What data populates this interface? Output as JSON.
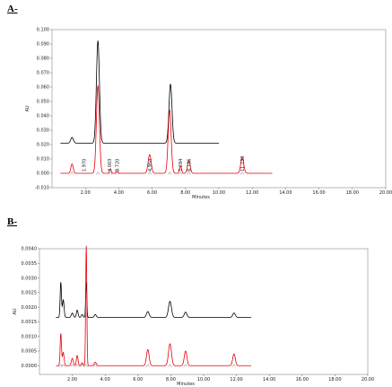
{
  "panels": {
    "a": {
      "label": "A-"
    },
    "b": {
      "label": "B-"
    }
  },
  "chart_data": [
    {
      "type": "line",
      "panel": "A-",
      "xlabel": "Minutes",
      "ylabel": "AU",
      "xlim": [
        0,
        20
      ],
      "ylim": [
        -0.01,
        0.1
      ],
      "x_ticks": [
        "2.00",
        "4.00",
        "6.00",
        "8.00",
        "10.00",
        "12.00",
        "14.00",
        "16.00",
        "18.00",
        "20.00"
      ],
      "y_ticks": [
        "-0.010",
        "0.000",
        "0.010",
        "0.020",
        "0.030",
        "0.040",
        "0.050",
        "0.060",
        "0.070",
        "0.080",
        "0.090",
        "0.100"
      ],
      "grid": false,
      "series": [
        {
          "color": "#000000",
          "baseline": 0.021,
          "x_range": [
            0.5,
            10.0
          ],
          "peaks": [
            {
              "x": 1.2,
              "height": 0.004,
              "width": 0.08
            },
            {
              "x": 2.75,
              "height": 0.071,
              "width": 0.09
            },
            {
              "x": 7.1,
              "height": 0.041,
              "width": 0.09
            }
          ]
        },
        {
          "color": "#e8000b",
          "baseline": 0.0,
          "x_range": [
            0.5,
            13.2
          ],
          "peaks": [
            {
              "x": 1.2,
              "height": 0.0065,
              "width": 0.07
            },
            {
              "x": 2.75,
              "height": 0.061,
              "width": 0.09
            },
            {
              "x": 3.5,
              "height": 0.003,
              "width": 0.05
            },
            {
              "x": 3.9,
              "height": 0.002,
              "width": 0.05
            },
            {
              "x": 5.85,
              "height": 0.013,
              "width": 0.09
            },
            {
              "x": 7.05,
              "height": 0.044,
              "width": 0.09
            },
            {
              "x": 7.7,
              "height": 0.005,
              "width": 0.06
            },
            {
              "x": 8.2,
              "height": 0.009,
              "width": 0.08
            },
            {
              "x": 11.4,
              "height": 0.011,
              "width": 0.09
            }
          ]
        }
      ],
      "peak_labels": [
        {
          "x": 1.9,
          "text": "1.970"
        },
        {
          "x": 3.45,
          "text": "3.003"
        },
        {
          "x": 3.9,
          "text": "3.720"
        },
        {
          "x": 5.85,
          "text": "4.954"
        },
        {
          "x": 7.7,
          "text": "7.284"
        },
        {
          "x": 8.2,
          "text": "8.136"
        },
        {
          "x": 11.4,
          "text": "11.130"
        }
      ]
    },
    {
      "type": "line",
      "panel": "B-",
      "xlabel": "Minutes",
      "ylabel": "AU",
      "xlim": [
        0,
        20
      ],
      "ylim": [
        -0.0003,
        0.004
      ],
      "x_ticks": [
        "2.00",
        "4.00",
        "6.00",
        "8.00",
        "10.00",
        "12.00",
        "14.00",
        "16.00",
        "18.00",
        "20.00"
      ],
      "y_ticks": [
        "0.0000",
        "0.0005",
        "0.0010",
        "0.0015",
        "0.0020",
        "0.0025",
        "0.0030",
        "0.0035",
        "0.0040"
      ],
      "grid": false,
      "series": [
        {
          "color": "#000000",
          "baseline": 0.00165,
          "x_range": [
            1.0,
            12.9
          ],
          "peaks": [
            {
              "x": 1.3,
              "height": 0.0012,
              "width": 0.04
            },
            {
              "x": 1.45,
              "height": 0.0006,
              "width": 0.05
            },
            {
              "x": 2.0,
              "height": 0.00015,
              "width": 0.06
            },
            {
              "x": 2.3,
              "height": 0.00025,
              "width": 0.05
            },
            {
              "x": 2.6,
              "height": 0.0001,
              "width": 0.05
            },
            {
              "x": 2.85,
              "height": 0.0012,
              "width": 0.035
            },
            {
              "x": 3.4,
              "height": 0.0001,
              "width": 0.06
            },
            {
              "x": 6.6,
              "height": 0.0002,
              "width": 0.08
            },
            {
              "x": 7.95,
              "height": 0.00055,
              "width": 0.09
            },
            {
              "x": 8.9,
              "height": 0.00018,
              "width": 0.08
            },
            {
              "x": 11.85,
              "height": 0.00015,
              "width": 0.08
            }
          ]
        },
        {
          "color": "#e8000b",
          "baseline": 0.0,
          "x_range": [
            1.0,
            12.9
          ],
          "peaks": [
            {
              "x": 1.3,
              "height": 0.0011,
              "width": 0.04
            },
            {
              "x": 1.45,
              "height": 0.00045,
              "width": 0.05
            },
            {
              "x": 2.0,
              "height": 0.00025,
              "width": 0.06
            },
            {
              "x": 2.3,
              "height": 0.00035,
              "width": 0.05
            },
            {
              "x": 2.6,
              "height": 0.0001,
              "width": 0.05
            },
            {
              "x": 2.85,
              "height": 0.0041,
              "width": 0.035
            },
            {
              "x": 3.4,
              "height": 0.00012,
              "width": 0.06
            },
            {
              "x": 6.6,
              "height": 0.00055,
              "width": 0.08
            },
            {
              "x": 7.95,
              "height": 0.00075,
              "width": 0.09
            },
            {
              "x": 8.9,
              "height": 0.0005,
              "width": 0.08
            },
            {
              "x": 11.85,
              "height": 0.0004,
              "width": 0.08
            }
          ]
        }
      ]
    }
  ]
}
